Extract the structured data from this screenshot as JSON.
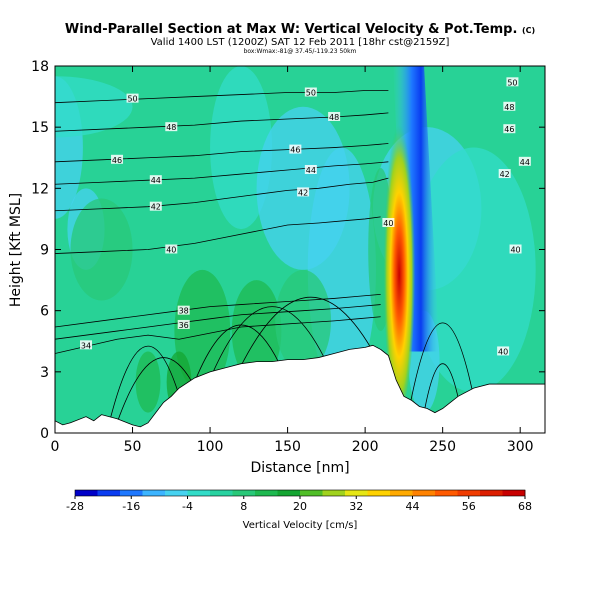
{
  "chart_data": {
    "type": "heatmap",
    "title": "Wind-Parallel Section at Max W: Vertical Velocity & Pot.Temp.",
    "title_mark": "(C)",
    "subtitle": "Valid 1400 LST (1200Z) SAT 12 Feb 2011 [18hr cst@2159Z]",
    "small_text": "box:Wmax:-81@ 37.45/-119.23 50km",
    "xlabel": "Distance [nm]",
    "ylabel": "Height [Kft MSL]",
    "xlim": [
      0,
      316
    ],
    "ylim": [
      0,
      18
    ],
    "xticks": [
      0,
      50,
      100,
      150,
      200,
      250,
      300
    ],
    "yticks": [
      0,
      3,
      6,
      9,
      12,
      15,
      18
    ],
    "terrain": {
      "x": [
        0,
        5,
        10,
        20,
        25,
        30,
        40,
        50,
        55,
        60,
        65,
        70,
        75,
        80,
        90,
        100,
        110,
        120,
        130,
        140,
        150,
        160,
        170,
        180,
        190,
        200,
        205,
        210,
        215,
        220,
        225,
        230,
        235,
        240,
        245,
        250,
        255,
        260,
        270,
        280,
        290,
        300,
        310,
        316
      ],
      "height": [
        0.6,
        0.4,
        0.5,
        0.8,
        0.6,
        0.9,
        0.7,
        0.4,
        0.3,
        0.5,
        1.0,
        1.5,
        1.8,
        2.2,
        2.7,
        3.0,
        3.2,
        3.4,
        3.5,
        3.5,
        3.6,
        3.6,
        3.7,
        3.9,
        4.1,
        4.2,
        4.3,
        4.1,
        3.8,
        2.6,
        1.8,
        1.6,
        1.3,
        1.2,
        1.0,
        1.2,
        1.5,
        1.8,
        2.2,
        2.4,
        2.4,
        2.4,
        2.4,
        2.4
      ]
    },
    "vertical_velocity": {
      "updraft_plume": {
        "x_center": 222,
        "core_height": 7.5,
        "max": 68
      },
      "downdraft_band": {
        "x_base": 232,
        "x_top": 222,
        "min": -28
      }
    },
    "pot_temp_contours": [
      {
        "level": 34,
        "x": [
          0,
          40,
          60,
          80,
          100,
          120,
          140,
          160,
          180,
          195,
          210
        ],
        "y": [
          3.9,
          4.6,
          4.8,
          4.6,
          4.9,
          5.2,
          5.3,
          5.4,
          5.5,
          5.6,
          5.7
        ],
        "label_x": 20
      },
      {
        "level": 36,
        "x": [
          0,
          40,
          60,
          80,
          100,
          120,
          140,
          160,
          180,
          195,
          210
        ],
        "y": [
          4.6,
          5.0,
          5.2,
          5.4,
          5.6,
          5.8,
          5.9,
          6.0,
          6.1,
          6.2,
          6.3
        ],
        "label_x": 80
      },
      {
        "level": 38,
        "x": [
          0,
          40,
          60,
          80,
          100,
          120,
          140,
          160,
          180,
          195,
          210
        ],
        "y": [
          5.2,
          5.6,
          5.8,
          6.0,
          6.2,
          6.3,
          6.4,
          6.5,
          6.6,
          6.7,
          6.8
        ],
        "label_x": 80
      },
      {
        "level": 40,
        "x": [
          0,
          30,
          60,
          90,
          110,
          130,
          150,
          170,
          185,
          200,
          210
        ],
        "y": [
          8.8,
          8.9,
          9.0,
          9.3,
          9.6,
          9.9,
          10.2,
          10.3,
          10.4,
          10.5,
          10.6
        ],
        "label_x": 70
      },
      {
        "level": 42,
        "x": [
          0,
          30,
          60,
          90,
          110,
          130,
          150,
          170,
          190,
          205,
          215
        ],
        "y": [
          10.9,
          11.0,
          11.1,
          11.3,
          11.5,
          11.7,
          11.9,
          12.0,
          12.2,
          12.3,
          12.5
        ],
        "label_x": 65
      },
      {
        "level": 44,
        "x": [
          0,
          30,
          60,
          90,
          120,
          150,
          180,
          200,
          215
        ],
        "y": [
          12.2,
          12.3,
          12.4,
          12.5,
          12.7,
          12.9,
          13.1,
          13.2,
          13.3
        ],
        "label_x": 65
      },
      {
        "level": 46,
        "x": [
          0,
          30,
          60,
          90,
          120,
          150,
          180,
          200,
          215
        ],
        "y": [
          13.3,
          13.4,
          13.5,
          13.6,
          13.8,
          13.9,
          14.0,
          14.1,
          14.2
        ],
        "label_x": 40
      },
      {
        "level": 48,
        "x": [
          0,
          30,
          60,
          90,
          120,
          150,
          180,
          200,
          215
        ],
        "y": [
          14.8,
          14.9,
          15.0,
          15.1,
          15.3,
          15.4,
          15.5,
          15.6,
          15.7
        ],
        "label_x": 75
      },
      {
        "level": 50,
        "x": [
          0,
          30,
          60,
          90,
          120,
          150,
          180,
          200,
          215
        ],
        "y": [
          16.2,
          16.3,
          16.4,
          16.5,
          16.6,
          16.7,
          16.7,
          16.8,
          16.8
        ],
        "label_x": 50
      }
    ],
    "contour_labels": [
      {
        "text": "50",
        "x": 50,
        "y": 16.4
      },
      {
        "text": "50",
        "x": 165,
        "y": 16.7
      },
      {
        "text": "48",
        "x": 75,
        "y": 15.0
      },
      {
        "text": "48",
        "x": 180,
        "y": 15.5
      },
      {
        "text": "46",
        "x": 40,
        "y": 13.4
      },
      {
        "text": "46",
        "x": 155,
        "y": 13.9
      },
      {
        "text": "44",
        "x": 65,
        "y": 12.4
      },
      {
        "text": "44",
        "x": 165,
        "y": 12.9
      },
      {
        "text": "42",
        "x": 65,
        "y": 11.1
      },
      {
        "text": "42",
        "x": 160,
        "y": 11.8
      },
      {
        "text": "40",
        "x": 75,
        "y": 9.0
      },
      {
        "text": "40",
        "x": 215,
        "y": 10.3
      },
      {
        "text": "38",
        "x": 83,
        "y": 6.0
      },
      {
        "text": "36",
        "x": 83,
        "y": 5.3
      },
      {
        "text": "34",
        "x": 20,
        "y": 4.3
      },
      {
        "text": "50",
        "x": 295,
        "y": 17.2
      },
      {
        "text": "48",
        "x": 293,
        "y": 16.0
      },
      {
        "text": "46",
        "x": 293,
        "y": 14.9
      },
      {
        "text": "44",
        "x": 303,
        "y": 13.3
      },
      {
        "text": "42",
        "x": 290,
        "y": 12.7
      },
      {
        "text": "40",
        "x": 297,
        "y": 9.0
      },
      {
        "text": "40",
        "x": 289,
        "y": 4.0
      }
    ],
    "colorbar": {
      "label": "Vertical Velocity [cm/s]",
      "tick_labels": [
        "-28",
        "-16",
        "-4",
        "8",
        "20",
        "32",
        "44",
        "56",
        "68"
      ],
      "colors": [
        "#0000c8",
        "#0a3cf0",
        "#1e78ff",
        "#3cb4ff",
        "#46d2f0",
        "#32dcc8",
        "#28d2a0",
        "#28c878",
        "#1eb950",
        "#14a532",
        "#50be28",
        "#a0d21e",
        "#e6e614",
        "#ffd200",
        "#ffaa00",
        "#ff8200",
        "#ff5a00",
        "#f03c00",
        "#dc1e00",
        "#c80000"
      ]
    }
  }
}
